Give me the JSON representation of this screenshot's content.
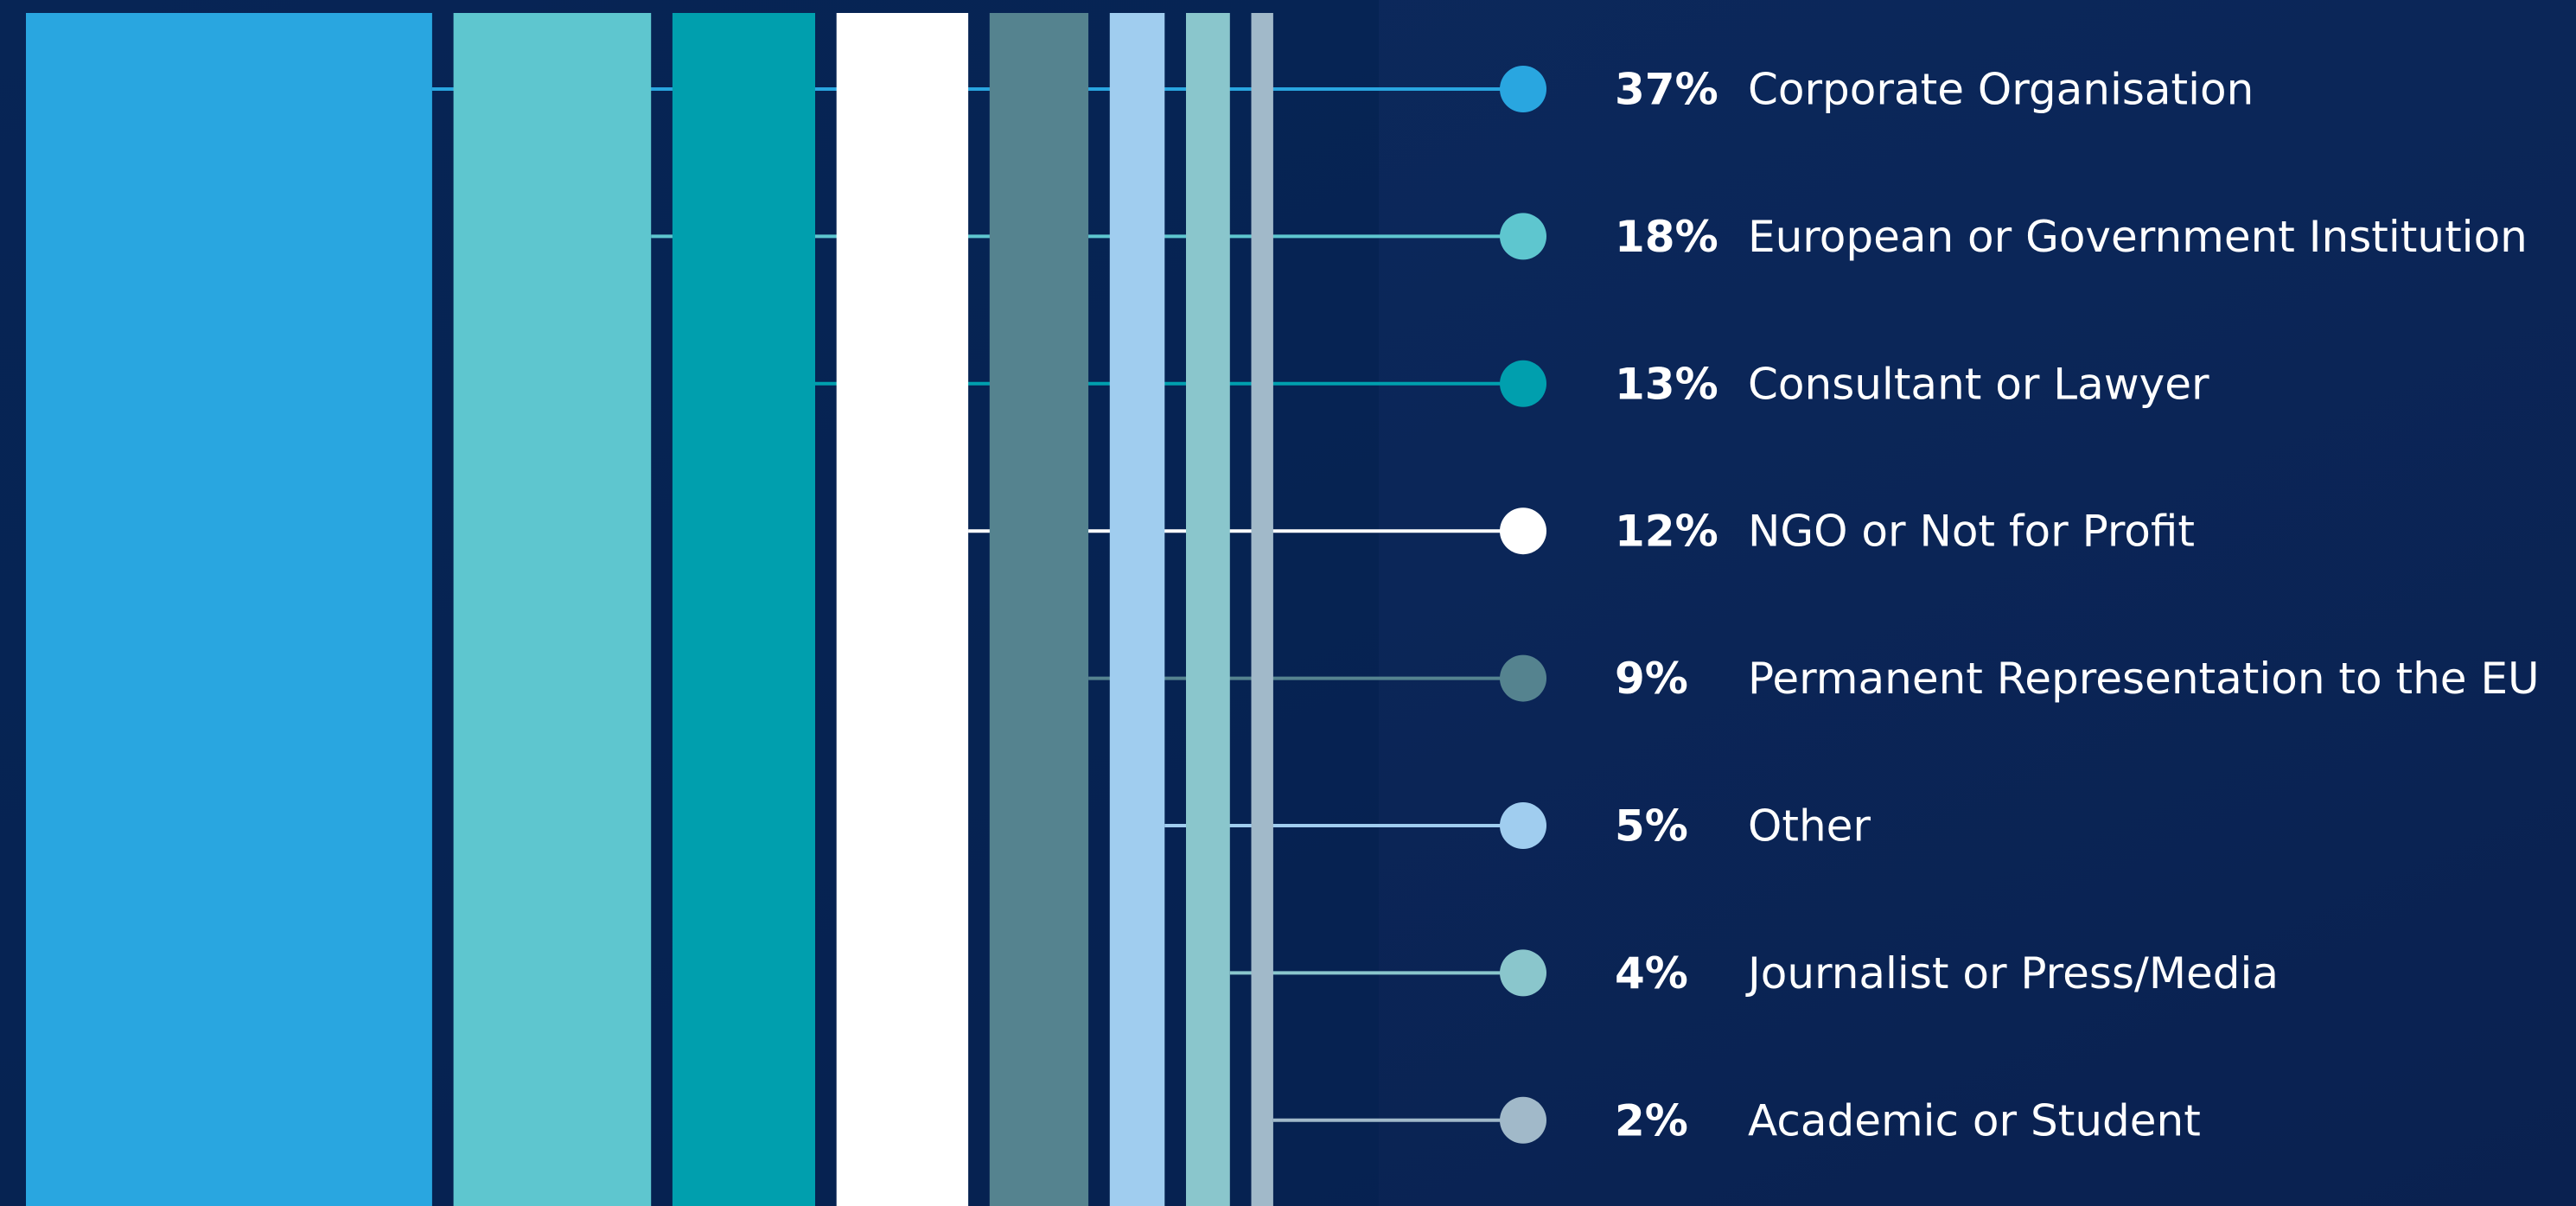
{
  "chart_data": {
    "type": "bar",
    "categories": [
      "Corporate Organisation",
      "European or Government Institution",
      "Consultant or Lawyer",
      "NGO or Not for Profit",
      "Permanent Representation to the EU",
      "Other",
      "Journalist or Press/Media",
      "Academic or Student"
    ],
    "values": [
      37,
      18,
      13,
      12,
      9,
      5,
      4,
      2
    ],
    "value_labels": [
      "37%",
      "18%",
      "13%",
      "12%",
      "9%",
      "5%",
      "4%",
      "2%"
    ],
    "colors": [
      "#29a6e0",
      "#5ec6cf",
      "#009fae",
      "#ffffff",
      "#55838f",
      "#a0cdef",
      "#8ac6cc",
      "#a1b9c9"
    ]
  }
}
